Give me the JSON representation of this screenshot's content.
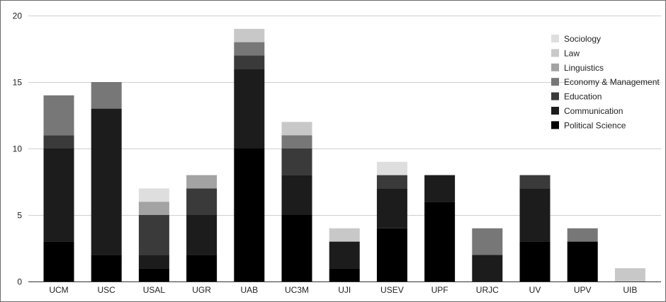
{
  "chart_data": {
    "type": "bar",
    "stacked": true,
    "title": "",
    "xlabel": "",
    "ylabel": "",
    "ylim": [
      0,
      20
    ],
    "y_ticks": [
      0,
      5,
      10,
      15,
      20
    ],
    "grid": true,
    "legend_position": "top-right",
    "categories": [
      "UCM",
      "USC",
      "USAL",
      "UGR",
      "UAB",
      "UC3M",
      "UJI",
      "USEV",
      "UPF",
      "URJC",
      "UV",
      "UPV",
      "UIB"
    ],
    "series": [
      {
        "name": "Political Science",
        "color": "#000000",
        "values": [
          3,
          2,
          1,
          2,
          10,
          5,
          1,
          4,
          6,
          0,
          3,
          3,
          0
        ]
      },
      {
        "name": "Communication",
        "color": "#1c1c1c",
        "values": [
          7,
          11,
          1,
          3,
          6,
          3,
          2,
          3,
          2,
          2,
          4,
          0,
          0
        ]
      },
      {
        "name": "Education",
        "color": "#3a3a3a",
        "values": [
          1,
          0,
          3,
          2,
          1,
          2,
          0,
          1,
          0,
          0,
          1,
          0,
          0
        ]
      },
      {
        "name": "Economy & Management",
        "color": "#777777",
        "values": [
          3,
          2,
          0,
          0,
          1,
          1,
          0,
          0,
          0,
          2,
          0,
          1,
          0
        ]
      },
      {
        "name": "Linguistics",
        "color": "#a3a3a3",
        "values": [
          0,
          0,
          1,
          1,
          0,
          0,
          0,
          0,
          0,
          0,
          0,
          0,
          0
        ]
      },
      {
        "name": "Law",
        "color": "#c8c8c8",
        "values": [
          0,
          0,
          0,
          0,
          1,
          1,
          1,
          0,
          0,
          0,
          0,
          0,
          1
        ]
      },
      {
        "name": "Sociology",
        "color": "#dedede",
        "values": [
          0,
          0,
          1,
          0,
          0,
          0,
          0,
          1,
          0,
          0,
          0,
          0,
          0
        ]
      }
    ]
  }
}
